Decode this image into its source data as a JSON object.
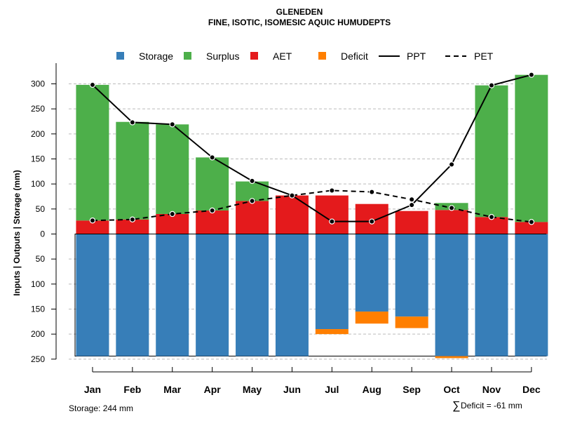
{
  "chart_data": {
    "type": "bar",
    "title": "GLENEDEN",
    "subtitle": "FINE, ISOTIC, ISOMESIC AQUIC HUMUDEPTS",
    "ylabel": "Inputs | Outputs | Storage    (mm)",
    "categories": [
      "Jan",
      "Feb",
      "Mar",
      "Apr",
      "May",
      "Jun",
      "Jul",
      "Aug",
      "Sep",
      "Oct",
      "Nov",
      "Dec"
    ],
    "y_ticks_above": [
      "300",
      "250",
      "200",
      "150",
      "100",
      "50",
      "0"
    ],
    "y_ticks_below": [
      "50",
      "100",
      "150",
      "200",
      "250"
    ],
    "y_tick_values_above": [
      300,
      250,
      200,
      150,
      100,
      50,
      0
    ],
    "y_tick_values_below": [
      50,
      100,
      150,
      200,
      250
    ],
    "ylim": [
      -250,
      320
    ],
    "series": [
      {
        "name": "Storage",
        "color": "#377EB8",
        "values": [
          244,
          244,
          244,
          244,
          244,
          244,
          190,
          155,
          165,
          244,
          244,
          244
        ]
      },
      {
        "name": "Surplus",
        "color": "#4DAF4A",
        "values": [
          271,
          195,
          179,
          106,
          39,
          0,
          0,
          0,
          0,
          14,
          263,
          294
        ]
      },
      {
        "name": "AET",
        "color": "#E41A1C",
        "values": [
          27,
          29,
          40,
          47,
          66,
          77,
          77,
          60,
          46,
          48,
          34,
          24
        ]
      },
      {
        "name": "Deficit",
        "color": "#FF7F00",
        "values": [
          0,
          0,
          0,
          0,
          0,
          0,
          10,
          24,
          23,
          4,
          0,
          0
        ]
      },
      {
        "name": "PPT",
        "values": [
          298,
          223,
          219,
          153,
          106,
          77,
          25,
          25,
          58,
          139,
          297,
          318
        ]
      },
      {
        "name": "PET",
        "values": [
          27,
          29,
          40,
          47,
          66,
          77,
          87,
          84,
          69,
          52,
          34,
          24
        ]
      }
    ],
    "legend": [
      {
        "label": "Storage",
        "kind": "box",
        "color": "#377EB8"
      },
      {
        "label": "Surplus",
        "kind": "box",
        "color": "#4DAF4A"
      },
      {
        "label": "AET",
        "kind": "box",
        "color": "#E41A1C"
      },
      {
        "label": "Deficit",
        "kind": "box",
        "color": "#FF7F00"
      },
      {
        "label": "PPT",
        "kind": "solid"
      },
      {
        "label": "PET",
        "kind": "dashed"
      }
    ],
    "grid": true,
    "legend_position": "top"
  },
  "footer": {
    "storage": "Storage: 244 mm",
    "deficit_symbol": "∑",
    "deficit": "Deficit = -61 mm"
  }
}
